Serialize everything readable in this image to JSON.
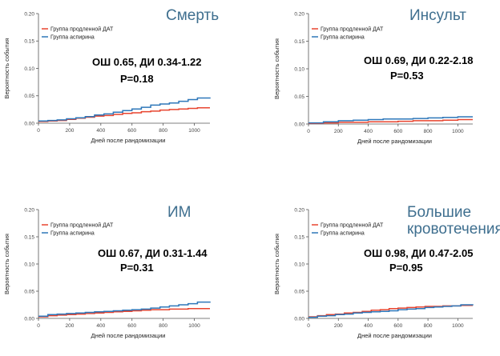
{
  "chart_data": [
    {
      "type": "line",
      "title": "Смерть",
      "stat_line1": "ОШ 0.65, ДИ 0.34-1.22",
      "stat_line2": "P=0.18",
      "xlabel": "Дней после рандомизации",
      "ylabel": "Вероятность события",
      "xlim": [
        0,
        1100
      ],
      "ylim": [
        0,
        0.2
      ],
      "xticks": [
        0,
        200,
        400,
        600,
        800,
        1000
      ],
      "yticks": [
        0.0,
        0.05,
        0.1,
        0.15,
        0.2
      ],
      "xtick_labels": [
        "0",
        "200",
        "400",
        "600",
        "800",
        "1000"
      ],
      "ytick_labels": [
        "0.00",
        "0.05",
        "0.10",
        "0.15",
        "0.20"
      ],
      "legend_position": "top-left",
      "series": [
        {
          "name": "Группа продленной ДАТ",
          "color": "#e8442f",
          "x": [
            0,
            60,
            120,
            180,
            240,
            300,
            360,
            420,
            480,
            540,
            600,
            660,
            720,
            780,
            840,
            900,
            960,
            1020,
            1100
          ],
          "y": [
            0.003,
            0.004,
            0.005,
            0.007,
            0.009,
            0.011,
            0.013,
            0.014,
            0.016,
            0.018,
            0.019,
            0.021,
            0.022,
            0.024,
            0.025,
            0.026,
            0.027,
            0.028,
            0.028
          ]
        },
        {
          "name": "Группа аспирина",
          "color": "#2e77b9",
          "x": [
            0,
            60,
            120,
            180,
            240,
            300,
            360,
            420,
            480,
            540,
            600,
            660,
            720,
            780,
            840,
            900,
            960,
            1020,
            1100
          ],
          "y": [
            0.004,
            0.005,
            0.006,
            0.008,
            0.01,
            0.012,
            0.015,
            0.017,
            0.02,
            0.023,
            0.026,
            0.029,
            0.033,
            0.035,
            0.037,
            0.04,
            0.043,
            0.046,
            0.047
          ]
        }
      ]
    },
    {
      "type": "line",
      "title": "Инсульт",
      "stat_line1": "ОШ 0.69, ДИ 0.22-2.18",
      "stat_line2": "P=0.53",
      "xlabel": "Дней после рандомизации",
      "ylabel": "Вероятность события",
      "xlim": [
        0,
        1100
      ],
      "ylim": [
        0,
        0.2
      ],
      "xticks": [
        0,
        200,
        400,
        600,
        800,
        1000
      ],
      "yticks": [
        0.0,
        0.05,
        0.1,
        0.15,
        0.2
      ],
      "xtick_labels": [
        "0",
        "200",
        "400",
        "600",
        "800",
        "1000"
      ],
      "ytick_labels": [
        "0.00",
        "0.05",
        "0.10",
        "0.15",
        "0.20"
      ],
      "legend_position": "top-left",
      "series": [
        {
          "name": "Группа продленной ДАТ",
          "color": "#e8442f",
          "x": [
            0,
            100,
            200,
            300,
            400,
            500,
            600,
            700,
            800,
            900,
            1000,
            1100
          ],
          "y": [
            0.001,
            0.002,
            0.003,
            0.003,
            0.004,
            0.004,
            0.005,
            0.006,
            0.006,
            0.007,
            0.008,
            0.008
          ]
        },
        {
          "name": "Группа аспирина",
          "color": "#2e77b9",
          "x": [
            0,
            100,
            200,
            300,
            400,
            500,
            600,
            700,
            800,
            900,
            1000,
            1100
          ],
          "y": [
            0.002,
            0.004,
            0.006,
            0.007,
            0.008,
            0.009,
            0.009,
            0.01,
            0.011,
            0.012,
            0.013,
            0.013
          ]
        }
      ]
    },
    {
      "type": "line",
      "title": "ИМ",
      "stat_line1": "ОШ 0.67, ДИ 0.31-1.44",
      "stat_line2": "P=0.31",
      "xlabel": "Дней после рандомизации",
      "ylabel": "Вероятность события",
      "xlim": [
        0,
        1100
      ],
      "ylim": [
        0,
        0.2
      ],
      "xticks": [
        0,
        200,
        400,
        600,
        800,
        1000
      ],
      "yticks": [
        0.0,
        0.05,
        0.1,
        0.15,
        0.2
      ],
      "xtick_labels": [
        "0",
        "200",
        "400",
        "600",
        "800",
        "1000"
      ],
      "ytick_labels": [
        "0.00",
        "0.05",
        "0.10",
        "0.15",
        "0.20"
      ],
      "legend_position": "top-left",
      "series": [
        {
          "name": "Группа продленной ДАТ",
          "color": "#e8442f",
          "x": [
            0,
            60,
            120,
            180,
            240,
            300,
            360,
            420,
            480,
            540,
            600,
            660,
            720,
            780,
            840,
            900,
            960,
            1020,
            1100
          ],
          "y": [
            0.003,
            0.005,
            0.006,
            0.007,
            0.008,
            0.009,
            0.01,
            0.011,
            0.012,
            0.013,
            0.014,
            0.015,
            0.016,
            0.016,
            0.017,
            0.017,
            0.018,
            0.018,
            0.018
          ]
        },
        {
          "name": "Группа аспирина",
          "color": "#2e77b9",
          "x": [
            0,
            60,
            120,
            180,
            240,
            300,
            360,
            420,
            480,
            540,
            600,
            660,
            720,
            780,
            840,
            900,
            960,
            1020,
            1100
          ],
          "y": [
            0.004,
            0.007,
            0.008,
            0.009,
            0.01,
            0.011,
            0.012,
            0.013,
            0.014,
            0.015,
            0.016,
            0.017,
            0.019,
            0.021,
            0.023,
            0.025,
            0.027,
            0.03,
            0.031
          ]
        }
      ]
    },
    {
      "type": "line",
      "title": "Большие кровотечения",
      "title_lines": [
        "Большие",
        "кровотечения"
      ],
      "stat_line1": "ОШ 0.98, ДИ 0.47-2.05",
      "stat_line2": "P=0.95",
      "xlabel": "Дней после рандомизации",
      "ylabel": "Вероятность события",
      "xlim": [
        0,
        1100
      ],
      "ylim": [
        0,
        0.2
      ],
      "xticks": [
        0,
        200,
        400,
        600,
        800,
        1000
      ],
      "yticks": [
        0.0,
        0.05,
        0.1,
        0.15,
        0.2
      ],
      "xtick_labels": [
        "0",
        "200",
        "400",
        "600",
        "800",
        "1000"
      ],
      "ytick_labels": [
        "0.00",
        "0.05",
        "0.10",
        "0.15",
        "0.20"
      ],
      "legend_position": "top-left",
      "series": [
        {
          "name": "Группа продленной ДАТ",
          "color": "#e8442f",
          "x": [
            0,
            60,
            120,
            180,
            240,
            300,
            360,
            420,
            480,
            540,
            600,
            660,
            720,
            780,
            840,
            900,
            960,
            1020,
            1100
          ],
          "y": [
            0.003,
            0.005,
            0.007,
            0.008,
            0.01,
            0.011,
            0.013,
            0.015,
            0.016,
            0.018,
            0.019,
            0.02,
            0.021,
            0.022,
            0.022,
            0.023,
            0.023,
            0.024,
            0.024
          ]
        },
        {
          "name": "Группа аспирина",
          "color": "#2e77b9",
          "x": [
            0,
            60,
            120,
            180,
            240,
            300,
            360,
            420,
            480,
            540,
            600,
            660,
            720,
            780,
            840,
            900,
            960,
            1020,
            1100
          ],
          "y": [
            0.002,
            0.004,
            0.005,
            0.007,
            0.008,
            0.01,
            0.011,
            0.012,
            0.013,
            0.014,
            0.016,
            0.017,
            0.018,
            0.02,
            0.021,
            0.022,
            0.023,
            0.025,
            0.026
          ]
        }
      ]
    }
  ]
}
